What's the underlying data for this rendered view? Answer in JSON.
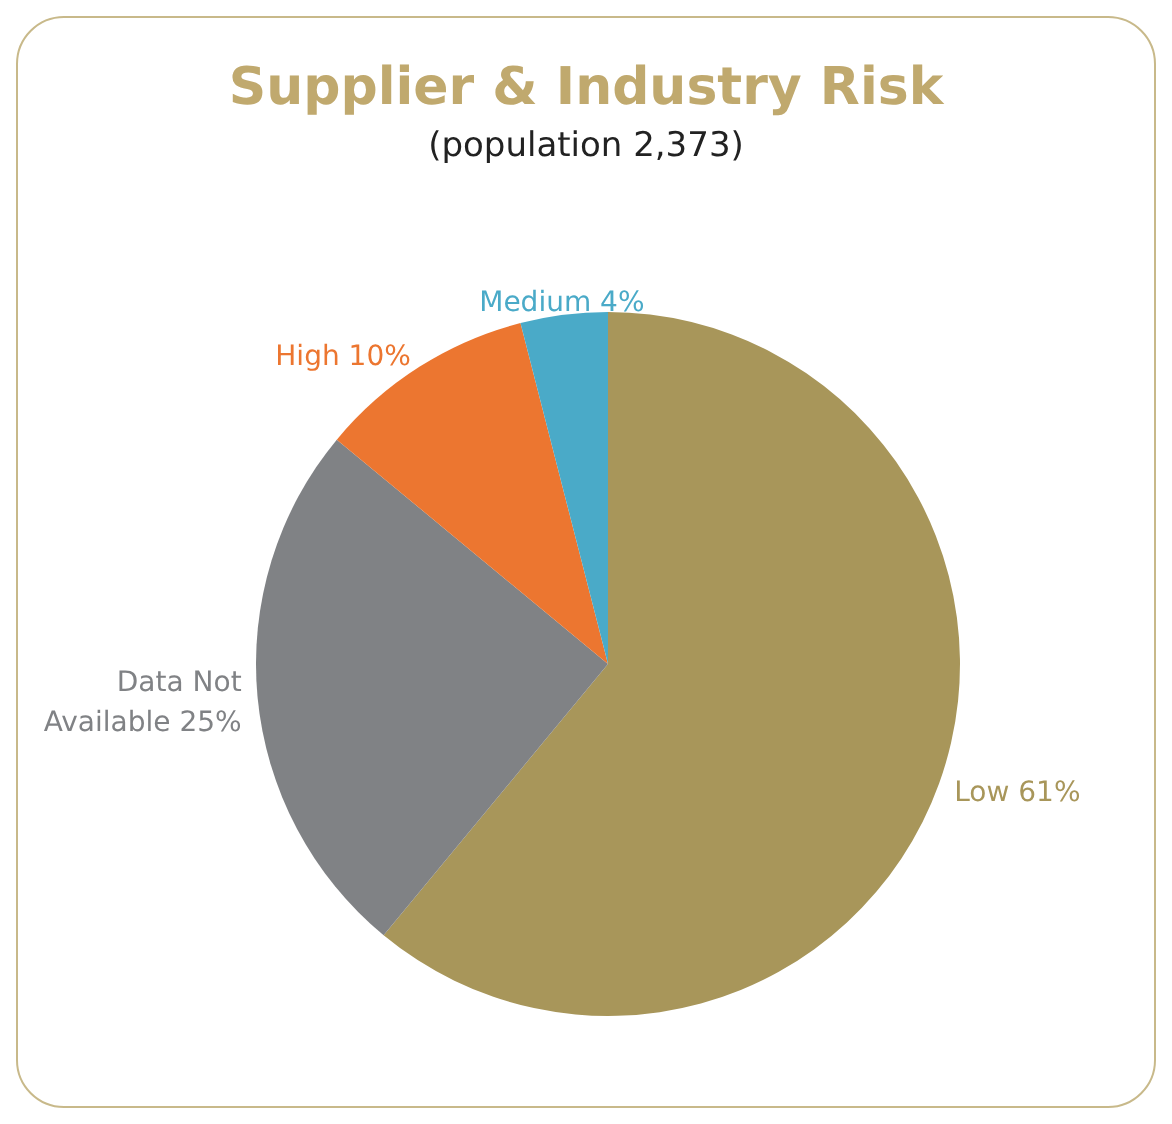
{
  "chart_data": {
    "type": "pie",
    "title": "Supplier & Industry Risk",
    "subtitle": "(population 2,373)",
    "categories": [
      "Low",
      "Data Not Available",
      "High",
      "Medium"
    ],
    "values": [
      61,
      25,
      10,
      4
    ],
    "value_labels": [
      "61%",
      "25%",
      "10%",
      "4%"
    ],
    "colors": [
      "#a8965a",
      "#808285",
      "#ec7630",
      "#4aaac8"
    ]
  }
}
